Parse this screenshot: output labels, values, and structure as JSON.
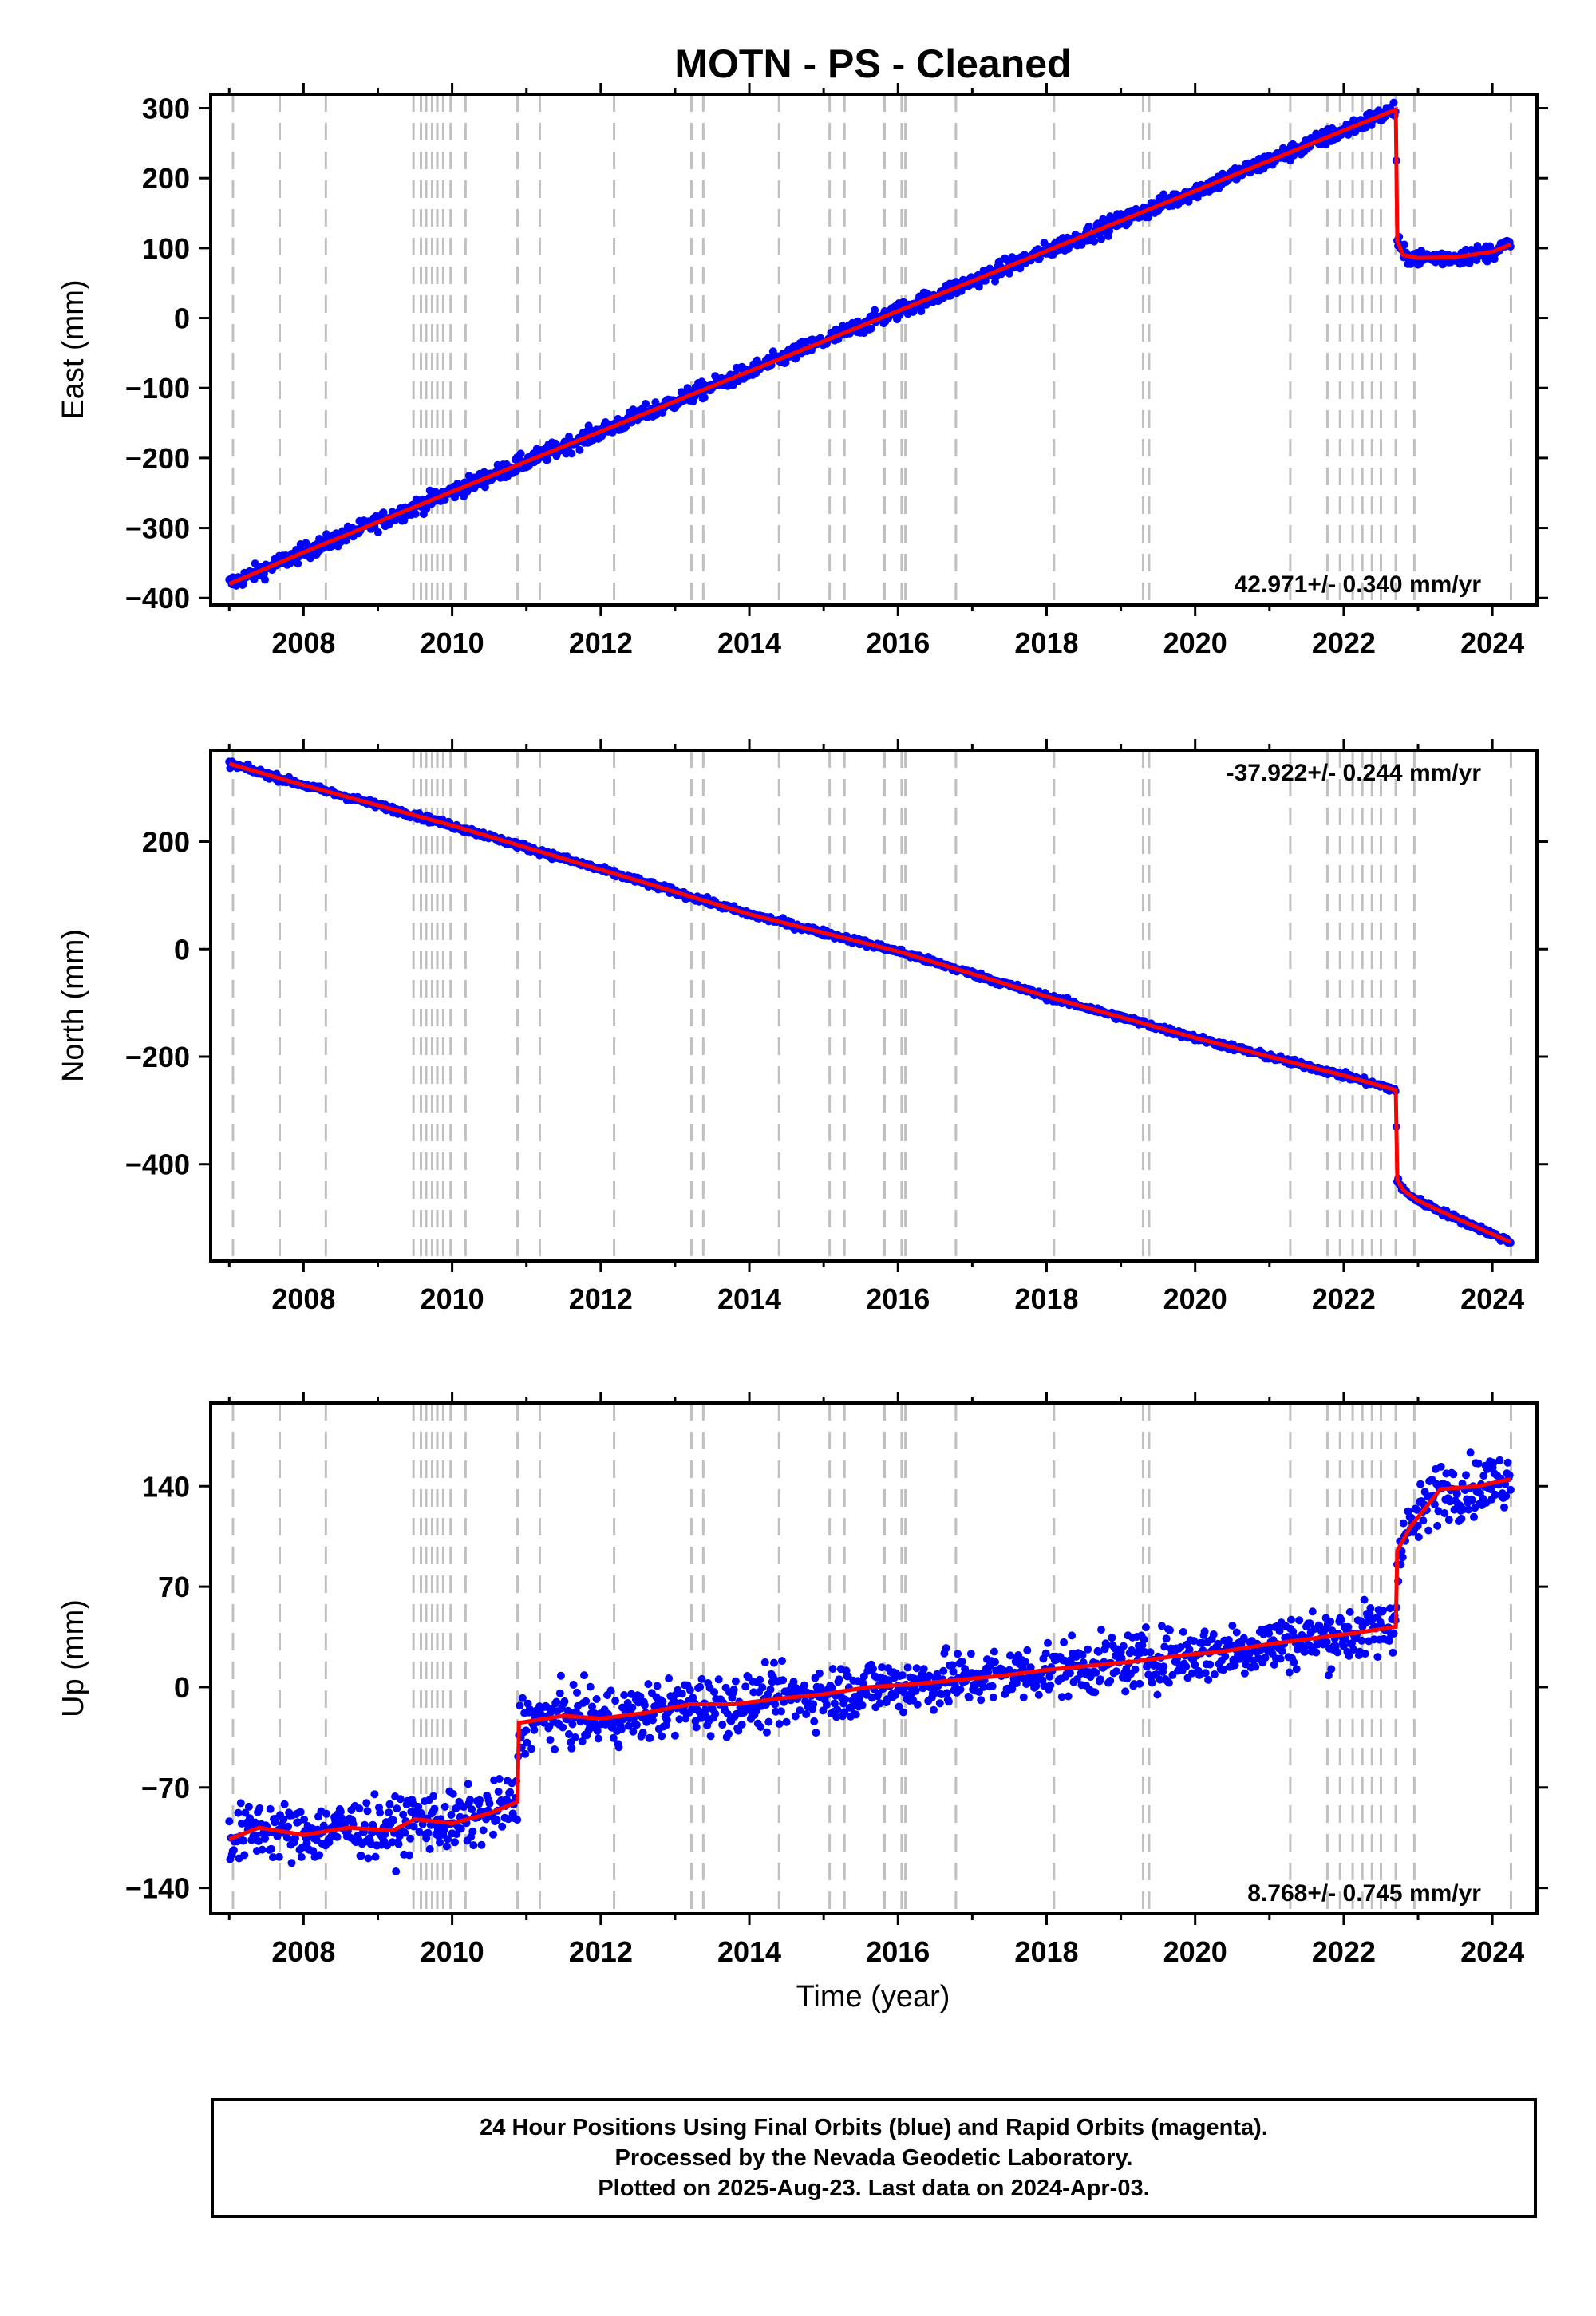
{
  "chart_data": {
    "title": "MOTN  - PS - Cleaned",
    "xlabel": "Time (year)",
    "xlim": [
      2006.75,
      2024.6
    ],
    "x_ticks": [
      2008,
      2010,
      2012,
      2014,
      2016,
      2018,
      2020,
      2022,
      2024
    ],
    "event_lines": [
      2007.05,
      2007.68,
      2008.3,
      2009.48,
      2009.58,
      2009.65,
      2009.73,
      2009.8,
      2009.88,
      2009.98,
      2010.18,
      2010.88,
      2011.18,
      2012.18,
      2013.22,
      2013.38,
      2014.4,
      2015.08,
      2015.28,
      2015.82,
      2016.05,
      2016.1,
      2016.78,
      2018.1,
      2019.3,
      2019.38,
      2021.28,
      2021.78,
      2021.95,
      2022.12,
      2022.25,
      2022.38,
      2022.5,
      2022.7,
      2022.95,
      2024.25
    ],
    "panels": [
      {
        "type": "scatter",
        "ylabel": "East (mm)",
        "ylim": [
          -410,
          320
        ],
        "y_ticks": [
          300,
          200,
          100,
          0,
          -100,
          -200,
          -300,
          -400
        ],
        "rate_label": "42.971+/- 0.340 mm/yr",
        "rate_position": "bottom-right",
        "series": [
          {
            "name": "Final Orbits",
            "color": "#0000ff",
            "noise_mm": 6
          },
          {
            "color": "#ff0000",
            "x": [
              2007.0,
              2008.0,
              2010.0,
              2012.0,
              2014.0,
              2016.0,
              2018.0,
              2020.0,
              2022.0,
              2022.7,
              2022.72,
              2022.8,
              2023.0,
              2023.5,
              2024.0,
              2024.25
            ],
            "values": [
              -380,
              -335,
              -248,
              -162,
              -76,
              10,
              96,
              182,
              268,
              298,
              110,
              90,
              86,
              87,
              95,
              105
            ]
          }
        ]
      },
      {
        "type": "scatter",
        "ylabel": "North (mm)",
        "ylim": [
          -580,
          370
        ],
        "y_ticks": [
          200,
          0,
          -200,
          -400
        ],
        "rate_label": "-37.922+/- 0.244 mm/yr",
        "rate_position": "top-right",
        "series": [
          {
            "name": "Final Orbits",
            "color": "#0000ff",
            "noise_mm": 3
          },
          {
            "color": "#ff0000",
            "x": [
              2007.0,
              2008.0,
              2010.0,
              2012.0,
              2014.0,
              2016.0,
              2018.0,
              2020.0,
              2022.0,
              2022.7,
              2022.72,
              2022.8,
              2023.0,
              2023.5,
              2024.0,
              2024.25
            ],
            "values": [
              345,
              305,
              230,
              148,
              65,
              -4,
              -88,
              -165,
              -235,
              -262,
              -430,
              -448,
              -468,
              -500,
              -530,
              -545
            ]
          }
        ]
      },
      {
        "type": "scatter",
        "ylabel": "Up (mm)",
        "ylim": [
          -158,
          198
        ],
        "y_ticks": [
          140,
          70,
          0,
          -70,
          -140
        ],
        "rate_label": "8.768+/- 0.745 mm/yr",
        "rate_position": "bottom-right",
        "series": [
          {
            "name": "Final Orbits",
            "color": "#0000ff",
            "noise_mm": 10
          },
          {
            "color": "#ff0000",
            "x": [
              2007.0,
              2007.4,
              2008.0,
              2008.6,
              2009.2,
              2009.5,
              2010.0,
              2010.5,
              2010.88,
              2010.9,
              2011.5,
              2012.0,
              2012.6,
              2013.2,
              2013.8,
              2014.4,
              2015.0,
              2015.6,
              2016.2,
              2016.8,
              2017.4,
              2018.0,
              2018.6,
              2019.2,
              2019.8,
              2020.4,
              2021.0,
              2021.6,
              2022.2,
              2022.7,
              2022.72,
              2022.9,
              2023.3,
              2023.8,
              2024.25
            ],
            "values": [
              -106,
              -98,
              -103,
              -98,
              -100,
              -92,
              -95,
              -88,
              -80,
              -25,
              -20,
              -22,
              -18,
              -12,
              -12,
              -8,
              -5,
              0,
              2,
              5,
              8,
              12,
              15,
              18,
              22,
              25,
              30,
              34,
              38,
              42,
              95,
              112,
              138,
              140,
              145
            ]
          }
        ]
      }
    ]
  },
  "footer": {
    "line1": "24 Hour Positions Using Final Orbits (blue) and Rapid Orbits (magenta).",
    "line2": "Processed by the Nevada Geodetic Laboratory.",
    "line3": "Plotted on 2025-Aug-23. Last data on 2024-Apr-03."
  }
}
